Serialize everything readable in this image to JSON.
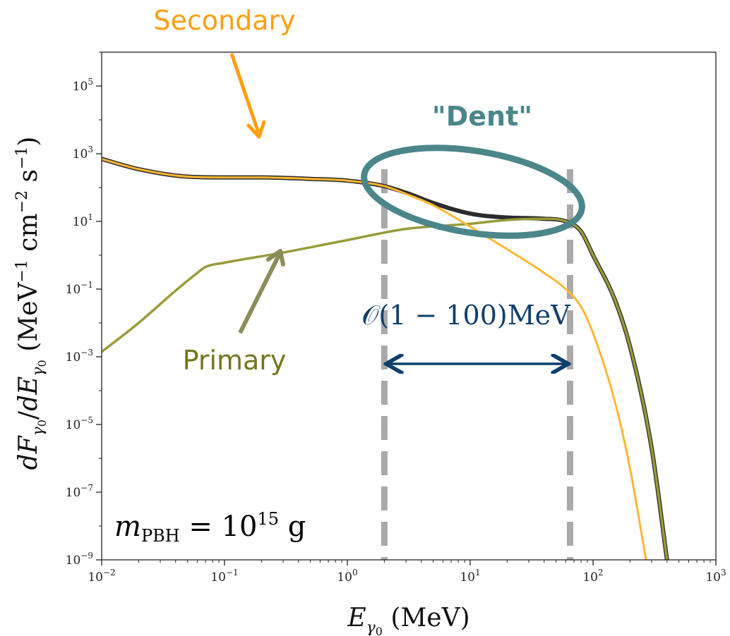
{
  "chart_data": {
    "type": "line",
    "x_scale": "log",
    "y_scale": "log",
    "xlim": [
      0.01,
      1000
    ],
    "ylim": [
      1e-09,
      1000000
    ],
    "xlabel": "E_γ0 (MeV)",
    "ylabel": "dF_γ0/dE_γ0 (MeV⁻¹ cm⁻² s⁻¹)",
    "x_ticks": [
      {
        "value": 0.01,
        "base": "10",
        "exp": "−2"
      },
      {
        "value": 0.1,
        "base": "10",
        "exp": "−1"
      },
      {
        "value": 1,
        "base": "10",
        "exp": "0"
      },
      {
        "value": 10,
        "base": "10",
        "exp": "1"
      },
      {
        "value": 100,
        "base": "10",
        "exp": "2"
      },
      {
        "value": 1000,
        "base": "10",
        "exp": "3"
      }
    ],
    "y_ticks": [
      {
        "value": 1e-09,
        "base": "10",
        "exp": "−9"
      },
      {
        "value": 1e-07,
        "base": "10",
        "exp": "−7"
      },
      {
        "value": 1e-05,
        "base": "10",
        "exp": "−5"
      },
      {
        "value": 0.001,
        "base": "10",
        "exp": "−3"
      },
      {
        "value": 0.1,
        "base": "10",
        "exp": "−1"
      },
      {
        "value": 10,
        "base": "10",
        "exp": "1"
      },
      {
        "value": 1000,
        "base": "10",
        "exp": "3"
      },
      {
        "value": 100000,
        "base": "10",
        "exp": "5"
      }
    ],
    "series": [
      {
        "key": "total",
        "color": "#2b2b2b",
        "points": [
          [
            0.01,
            700
          ],
          [
            0.02,
            350
          ],
          [
            0.05,
            210
          ],
          [
            0.1,
            200
          ],
          [
            0.2,
            200
          ],
          [
            0.5,
            180
          ],
          [
            1,
            160
          ],
          [
            2,
            110
          ],
          [
            3,
            70
          ],
          [
            5,
            35
          ],
          [
            10,
            17
          ],
          [
            20,
            13
          ],
          [
            40,
            12
          ],
          [
            60,
            10
          ],
          [
            80,
            5
          ],
          [
            100,
            1
          ],
          [
            150,
            0.05
          ],
          [
            200,
            0.002
          ],
          [
            300,
            2e-06
          ],
          [
            400,
            1e-09
          ]
        ]
      },
      {
        "key": "primary",
        "name": "Primary",
        "color": "#9a9a3a",
        "points": [
          [
            0.01,
            0.0014
          ],
          [
            0.02,
            0.01
          ],
          [
            0.04,
            0.09
          ],
          [
            0.06,
            0.3
          ],
          [
            0.07,
            0.45
          ],
          [
            0.1,
            0.6
          ],
          [
            0.3,
            1.2
          ],
          [
            1,
            2.8
          ],
          [
            3,
            6
          ],
          [
            10,
            8.5
          ],
          [
            20,
            11
          ],
          [
            40,
            12
          ],
          [
            60,
            10
          ],
          [
            80,
            5
          ],
          [
            100,
            1
          ],
          [
            150,
            0.05
          ],
          [
            200,
            0.002
          ],
          [
            300,
            2e-06
          ],
          [
            400,
            1e-09
          ]
        ]
      },
      {
        "key": "secondary",
        "name": "Secondary",
        "color": "#ffb733",
        "points": [
          [
            0.01,
            700
          ],
          [
            0.02,
            350
          ],
          [
            0.05,
            210
          ],
          [
            0.1,
            200
          ],
          [
            0.2,
            200
          ],
          [
            0.5,
            180
          ],
          [
            1,
            160
          ],
          [
            2,
            110
          ],
          [
            3,
            65
          ],
          [
            5,
            30
          ],
          [
            10,
            7
          ],
          [
            20,
            1.5
          ],
          [
            40,
            0.3
          ],
          [
            60,
            0.1
          ],
          [
            80,
            0.03
          ],
          [
            100,
            0.005
          ],
          [
            150,
            5e-05
          ],
          [
            200,
            5e-07
          ],
          [
            270,
            1e-09
          ]
        ]
      }
    ],
    "vlines": [
      2,
      65
    ],
    "range_arrow": {
      "x1": 2,
      "x2": 65,
      "y": 0.001,
      "label": "𝒪(1 − 100)MeV",
      "color": "#0f3e6b"
    },
    "annotations": {
      "secondary_label": "Secondary",
      "secondary_color": "#ff9e11",
      "primary_label": "Primary",
      "primary_color": "#757520",
      "dent_label": "\"Dent\"",
      "dent_color": "#4a868a",
      "mass_name": "m",
      "mass_sub": "PBH",
      "mass_eq": "= 10",
      "mass_exp": "15",
      "mass_unit": "g"
    }
  }
}
